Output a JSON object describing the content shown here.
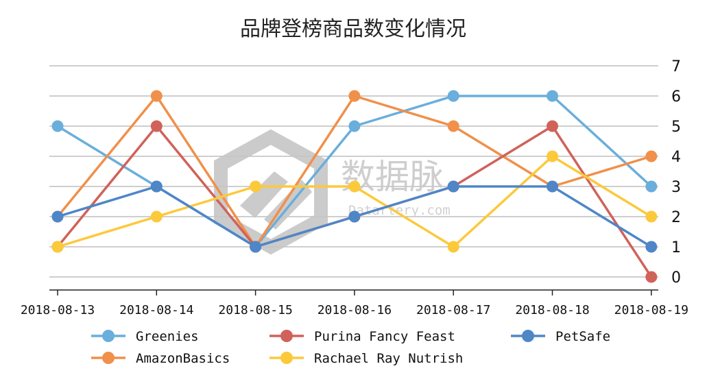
{
  "chart_data": {
    "type": "line",
    "title": "品牌登榜商品数变化情况",
    "xlabel": "",
    "ylabel": "",
    "categories": [
      "2018-08-13",
      "2018-08-14",
      "2018-08-15",
      "2018-08-16",
      "2018-08-17",
      "2018-08-18",
      "2018-08-19"
    ],
    "ylim": [
      0,
      7
    ],
    "yticks": [
      0,
      1,
      2,
      3,
      4,
      5,
      6,
      7
    ],
    "grid": true,
    "legend_position": "bottom",
    "series": [
      {
        "name": "Greenies",
        "color": "#6aaedc",
        "values": [
          5,
          3,
          1,
          5,
          6,
          6,
          3
        ]
      },
      {
        "name": "AmazonBasics",
        "color": "#f0904a",
        "values": [
          2,
          6,
          1,
          6,
          5,
          3,
          4
        ]
      },
      {
        "name": "Purina Fancy Feast",
        "color": "#d0625a",
        "values": [
          1,
          5,
          1,
          2,
          3,
          5,
          0
        ]
      },
      {
        "name": "Rachael Ray Nutrish",
        "color": "#fcc93b",
        "values": [
          1,
          2,
          3,
          3,
          1,
          4,
          2
        ]
      },
      {
        "name": "PetSafe",
        "color": "#4e86c8",
        "values": [
          2,
          3,
          1,
          2,
          3,
          3,
          1
        ]
      }
    ]
  },
  "watermark": {
    "text": "数据脉",
    "subtext": "Datartery.com"
  }
}
